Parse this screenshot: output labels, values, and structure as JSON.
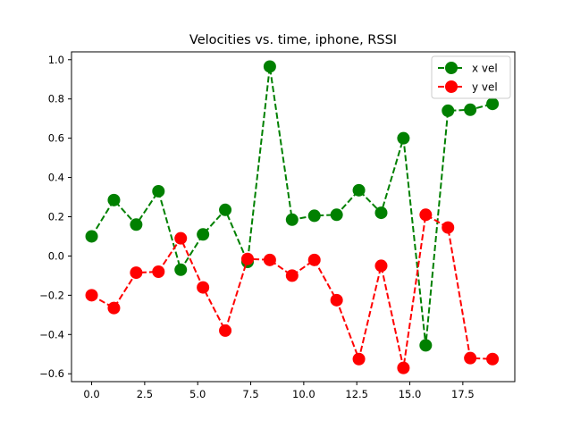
{
  "chart_data": {
    "type": "line",
    "title": "Velocities vs. time, iphone, RSSI",
    "xlabel": "",
    "ylabel": "",
    "xlim": [
      -0.95,
      19.95
    ],
    "ylim": [
      -0.64,
      1.04
    ],
    "xticks": [
      0.0,
      2.5,
      5.0,
      7.5,
      10.0,
      12.5,
      15.0,
      17.5
    ],
    "xtick_labels": [
      "0.0",
      "2.5",
      "5.0",
      "7.5",
      "10.0",
      "12.5",
      "15.0",
      "17.5"
    ],
    "yticks": [
      -0.6,
      -0.4,
      -0.2,
      0.0,
      0.2,
      0.4,
      0.6,
      0.8,
      1.0
    ],
    "ytick_labels": [
      "−0.6",
      "−0.4",
      "−0.2",
      "0.0",
      "0.2",
      "0.4",
      "0.6",
      "0.8",
      "1.0"
    ],
    "grid": false,
    "legend_position": "top-right",
    "x": [
      0.0,
      1.05,
      2.1,
      3.15,
      4.2,
      5.25,
      6.3,
      7.35,
      8.4,
      9.45,
      10.5,
      11.55,
      12.6,
      13.65,
      14.7,
      15.75,
      16.8,
      17.85,
      18.9
    ],
    "series": [
      {
        "name": "x vel",
        "color": "#008000",
        "values": [
          0.1,
          0.285,
          0.16,
          0.33,
          -0.07,
          0.11,
          0.235,
          -0.03,
          0.965,
          0.185,
          0.205,
          0.21,
          0.335,
          0.22,
          0.6,
          -0.455,
          0.74,
          0.745,
          0.775
        ]
      },
      {
        "name": "y vel",
        "color": "#ff0000",
        "values": [
          -0.2,
          -0.265,
          -0.085,
          -0.08,
          0.09,
          -0.16,
          -0.38,
          -0.015,
          -0.02,
          -0.1,
          -0.02,
          -0.225,
          -0.525,
          -0.05,
          -0.57,
          0.21,
          0.145,
          -0.52,
          -0.525
        ]
      }
    ]
  }
}
